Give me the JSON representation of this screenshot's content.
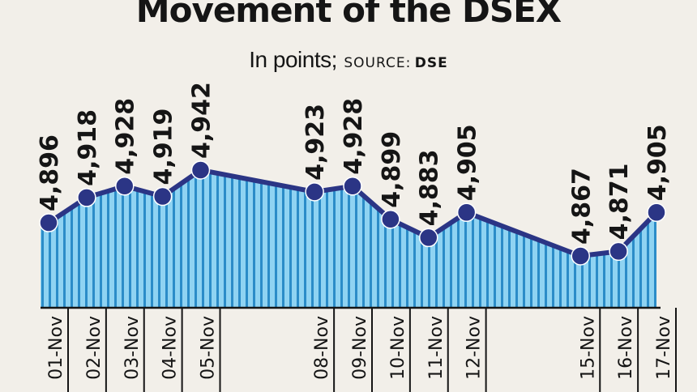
{
  "header": {
    "title": "Movement of the DSEX",
    "unit": "In points;",
    "source_label": "SOURCE:",
    "source_name": "DSE"
  },
  "colors": {
    "line": "#2b3585",
    "marker": "#2b3585",
    "stripe_light": "#8fd3f2",
    "stripe_dark": "#2b8cc8",
    "background": "#f2efe9",
    "axis": "#151515"
  },
  "chart_data": {
    "type": "area",
    "x": [
      "01-Nov",
      "02-Nov",
      "03-Nov",
      "04-Nov",
      "05-Nov",
      "08-Nov",
      "09-Nov",
      "10-Nov",
      "11-Nov",
      "12-Nov",
      "15-Nov",
      "16-Nov",
      "17-Nov"
    ],
    "x_days": [
      1,
      2,
      3,
      4,
      5,
      8,
      9,
      10,
      11,
      12,
      15,
      16,
      17
    ],
    "values": [
      4896,
      4918,
      4928,
      4919,
      4942,
      4923,
      4928,
      4899,
      4883,
      4905,
      4867,
      4871,
      4905
    ],
    "data_labels": [
      "4,896",
      "4,918",
      "4,928",
      "4,919",
      "4,942",
      "4,923",
      "4,928",
      "4,899",
      "4,883",
      "4,905",
      "4,867",
      "4,871",
      "4,905"
    ],
    "title": "Movement of the DSEX",
    "subtitle": "In points; SOURCE: DSE",
    "xlabel": "",
    "ylabel": "",
    "grid": false,
    "legend": "none"
  }
}
